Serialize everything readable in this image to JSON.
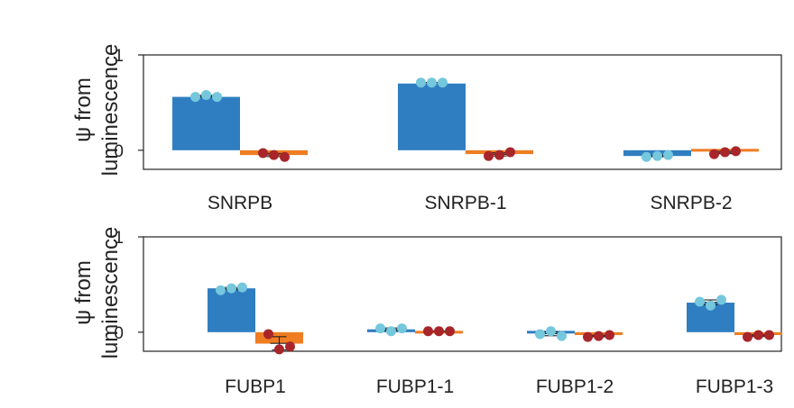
{
  "colors": {
    "bar_blue": "#2f7ec1",
    "bar_orange": "#ef7d22",
    "dot_blue": "#74c7dc",
    "dot_red": "#a8252a",
    "frame": "#222222"
  },
  "chart_data": [
    {
      "type": "bar",
      "title": "",
      "ylabel_lines": [
        "ψ from",
        "luminescence"
      ],
      "ylim": [
        -0.2,
        1.0
      ],
      "yticks": [
        "0",
        "1"
      ],
      "ytick_values": [
        0,
        1
      ],
      "grid": false,
      "categories": [
        "SNRPB",
        "SNRPB-1",
        "SNRPB-2"
      ],
      "series": [
        {
          "color": "bar_blue",
          "dot_color": "dot_blue",
          "values": [
            0.56,
            0.7,
            -0.06
          ],
          "points": [
            [
              0.56,
              0.58,
              0.56
            ],
            [
              0.71,
              0.71,
              0.71
            ],
            [
              -0.07,
              -0.06,
              -0.05
            ]
          ]
        },
        {
          "color": "bar_orange",
          "dot_color": "dot_red",
          "values": [
            -0.05,
            -0.04,
            -0.02
          ],
          "points": [
            [
              -0.03,
              -0.05,
              -0.07
            ],
            [
              -0.06,
              -0.05,
              -0.02
            ],
            [
              -0.04,
              -0.02,
              -0.01
            ]
          ]
        }
      ]
    },
    {
      "type": "bar",
      "title": "",
      "ylabel_lines": [
        "ψ from",
        "luminescence"
      ],
      "ylim": [
        -0.2,
        1.0
      ],
      "yticks": [
        "0",
        "1"
      ],
      "ytick_values": [
        0,
        1
      ],
      "grid": false,
      "categories": [
        "FUBP1",
        "FUBP1-1",
        "FUBP1-2",
        "FUBP1-3"
      ],
      "series": [
        {
          "color": "bar_blue",
          "dot_color": "dot_blue",
          "values": [
            0.46,
            0.03,
            -0.02,
            0.31
          ],
          "points": [
            [
              0.44,
              0.46,
              0.47
            ],
            [
              0.04,
              0.01,
              0.04
            ],
            [
              -0.02,
              0.01,
              -0.04
            ],
            [
              0.32,
              0.28,
              0.34
            ]
          ]
        },
        {
          "color": "bar_orange",
          "dot_color": "dot_red",
          "values": [
            -0.12,
            0.01,
            -0.03,
            -0.03
          ],
          "points": [
            [
              -0.02,
              -0.18,
              -0.15
            ],
            [
              0.01,
              0.01,
              0.01
            ],
            [
              -0.05,
              -0.04,
              -0.03
            ],
            [
              -0.05,
              -0.03,
              -0.03
            ]
          ]
        }
      ]
    }
  ]
}
